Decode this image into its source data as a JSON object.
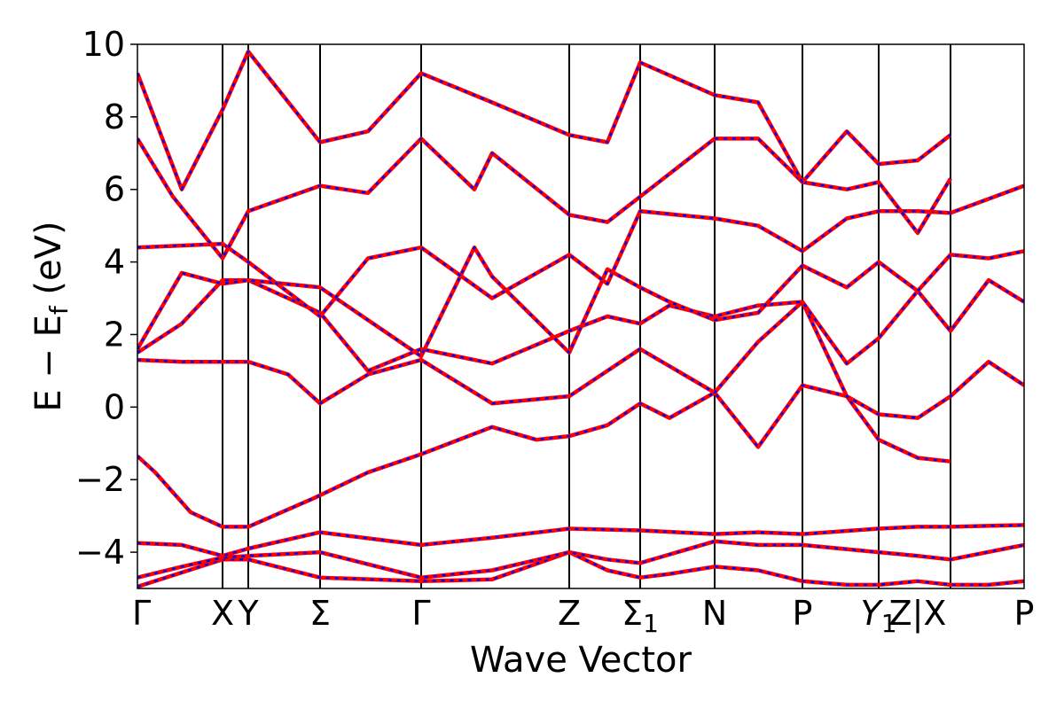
{
  "chart_data": {
    "type": "line",
    "title": "",
    "xlabel": "Wave Vector",
    "ylabel": "E − E_f (eV)",
    "ylabel_main": "E − E",
    "ylabel_sub": "f",
    "ylabel_unit": " (eV)",
    "ylim": [
      -5,
      10
    ],
    "yticks": [
      -4,
      -2,
      0,
      2,
      4,
      6,
      8,
      10
    ],
    "ytick_labels": [
      "−4",
      "−2",
      "0",
      "2",
      "4",
      "6",
      "8",
      "10"
    ],
    "xlim": [
      0,
      1
    ],
    "kpoints": [
      {
        "pos": 0.0,
        "label": "Γ"
      },
      {
        "pos": 0.096,
        "label": "X"
      },
      {
        "pos": 0.125,
        "label": "Y"
      },
      {
        "pos": 0.206,
        "label": "Σ"
      },
      {
        "pos": 0.32,
        "label": "Γ"
      },
      {
        "pos": 0.487,
        "label": "Z"
      },
      {
        "pos": 0.567,
        "label": "Σ",
        "sub": "1"
      },
      {
        "pos": 0.651,
        "label": "N"
      },
      {
        "pos": 0.75,
        "label": "P"
      },
      {
        "pos": 0.836,
        "label": "Y",
        "sub": "1",
        "italic": true
      },
      {
        "pos": 0.88,
        "label": "Z|X"
      },
      {
        "pos": 1.0,
        "label": "P"
      }
    ],
    "vlines": [
      0.096,
      0.125,
      0.206,
      0.32,
      0.487,
      0.567,
      0.651,
      0.75,
      0.836,
      0.917
    ],
    "line_colors": {
      "dft": "#0000ff",
      "model": "#ff0000"
    },
    "grid": false,
    "bands": [
      {
        "x": [
          0,
          0.096,
          0.125,
          0.206,
          0.32,
          0.4,
          0.487,
          0.53,
          0.567,
          0.6,
          0.651,
          0.7,
          0.75,
          0.8,
          0.836,
          0.88,
          0.917,
          0.96,
          1.0
        ],
        "y": [
          -4.95,
          -4.2,
          -4.2,
          -4.7,
          -4.8,
          -4.75,
          -4.0,
          -4.5,
          -4.7,
          -4.6,
          -4.4,
          -4.5,
          -4.8,
          -4.9,
          -4.9,
          -4.8,
          -4.9,
          -4.9,
          -4.8
        ]
      },
      {
        "x": [
          0,
          0.05,
          0.096,
          0.125,
          0.206,
          0.32,
          0.4,
          0.487,
          0.53,
          0.567,
          0.651,
          0.7,
          0.75,
          0.836,
          0.88,
          0.917,
          1.0
        ],
        "y": [
          -4.7,
          -4.4,
          -4.15,
          -4.1,
          -4.0,
          -4.7,
          -4.5,
          -4.0,
          -4.2,
          -4.3,
          -3.7,
          -3.8,
          -3.8,
          -4.0,
          -4.1,
          -4.2,
          -3.8
        ]
      },
      {
        "x": [
          0,
          0.05,
          0.096,
          0.125,
          0.206,
          0.32,
          0.4,
          0.487,
          0.567,
          0.651,
          0.7,
          0.75,
          0.836,
          0.88,
          0.917,
          1.0
        ],
        "y": [
          -3.75,
          -3.8,
          -4.1,
          -3.9,
          -3.45,
          -3.8,
          -3.6,
          -3.35,
          -3.4,
          -3.5,
          -3.45,
          -3.5,
          -3.35,
          -3.3,
          -3.3,
          -3.25
        ]
      },
      {
        "x": [
          0,
          0.02,
          0.06,
          0.096,
          0.125,
          0.2,
          0.26,
          0.32,
          0.4,
          0.45,
          0.487,
          0.53,
          0.567,
          0.6,
          0.651,
          0.7,
          0.75,
          0.8,
          0.836,
          0.88,
          0.917
        ],
        "y": [
          -1.35,
          -1.8,
          -2.9,
          -3.3,
          -3.3,
          -2.5,
          -1.8,
          -1.3,
          -0.55,
          -0.9,
          -0.8,
          -0.5,
          0.1,
          -0.3,
          0.4,
          -1.1,
          0.6,
          0.3,
          -0.9,
          -1.4,
          -1.5
        ]
      },
      {
        "x": [
          0,
          0.05,
          0.096,
          0.125,
          0.17,
          0.206,
          0.26,
          0.32,
          0.4,
          0.487,
          0.567,
          0.651,
          0.7,
          0.75,
          0.8,
          0.836,
          0.88,
          0.917,
          0.96,
          1.0
        ],
        "y": [
          1.3,
          1.25,
          1.25,
          1.25,
          0.9,
          0.1,
          0.9,
          1.3,
          0.1,
          0.3,
          1.6,
          0.4,
          1.8,
          2.9,
          0.3,
          -0.2,
          -0.3,
          0.3,
          1.25,
          0.6
        ]
      },
      {
        "x": [
          0,
          0.05,
          0.096,
          0.125,
          0.206,
          0.26,
          0.32,
          0.4,
          0.487,
          0.53,
          0.567,
          0.6,
          0.651,
          0.7,
          0.75,
          0.8,
          0.836,
          0.88,
          0.917,
          0.96,
          1.0
        ],
        "y": [
          1.5,
          2.3,
          3.5,
          3.5,
          2.6,
          1.0,
          1.6,
          1.2,
          2.1,
          2.5,
          2.3,
          2.8,
          2.5,
          2.8,
          2.9,
          1.2,
          1.9,
          3.2,
          2.1,
          3.5,
          2.9
        ]
      },
      {
        "x": [
          0,
          0.05,
          0.096,
          0.125,
          0.206,
          0.26,
          0.32,
          0.38,
          0.4,
          0.487,
          0.53,
          0.567,
          0.6,
          0.651,
          0.7,
          0.75,
          0.8,
          0.836,
          0.88,
          0.917,
          0.96,
          1.0
        ],
        "y": [
          1.6,
          3.7,
          3.4,
          3.5,
          3.3,
          2.4,
          1.4,
          4.4,
          3.6,
          1.5,
          3.8,
          3.3,
          2.9,
          2.4,
          2.6,
          3.9,
          3.3,
          4.0,
          3.2,
          4.2,
          4.1,
          4.3
        ]
      },
      {
        "x": [
          0,
          0.096,
          0.125,
          0.206,
          0.26,
          0.32,
          0.4,
          0.487,
          0.53,
          0.567,
          0.651,
          0.7,
          0.75,
          0.8,
          0.836,
          0.88,
          0.917,
          1.0
        ],
        "y": [
          4.4,
          4.5,
          4.0,
          2.5,
          4.1,
          4.4,
          3.0,
          4.2,
          3.4,
          5.4,
          5.2,
          5.0,
          4.3,
          5.2,
          5.4,
          5.4,
          5.35,
          6.1
        ]
      },
      {
        "x": [
          0,
          0.04,
          0.096,
          0.125,
          0.206,
          0.26,
          0.32,
          0.38,
          0.4,
          0.487,
          0.53,
          0.567,
          0.651,
          0.7,
          0.75,
          0.8,
          0.836,
          0.88,
          0.917
        ],
        "y": [
          7.4,
          5.8,
          4.1,
          5.4,
          6.1,
          5.9,
          7.4,
          6.0,
          7.0,
          5.3,
          5.1,
          5.8,
          7.4,
          7.4,
          6.2,
          6.0,
          6.2,
          4.8,
          6.3
        ]
      },
      {
        "x": [
          0,
          0.05,
          0.096,
          0.125,
          0.206,
          0.26,
          0.32,
          0.4,
          0.487,
          0.53,
          0.567,
          0.651,
          0.7,
          0.75,
          0.8,
          0.836,
          0.88,
          0.917
        ],
        "y": [
          9.2,
          6.0,
          8.2,
          9.8,
          7.3,
          7.6,
          9.2,
          8.4,
          7.5,
          7.3,
          9.5,
          8.6,
          8.4,
          6.2,
          7.6,
          6.7,
          6.8,
          7.5
        ]
      }
    ]
  }
}
